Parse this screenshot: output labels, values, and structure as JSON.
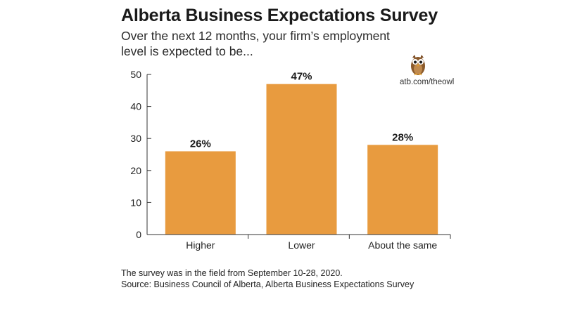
{
  "title": "Alberta Business Expectations Survey",
  "subtitle": [
    "Over the next 12 months, your firm’s employment",
    "level is expected to be..."
  ],
  "credit": "atb.com/theowl",
  "logo_icon": "owl-icon",
  "notes": [
    "The survey was in the field from September 10-28, 2020.",
    "Source: Business Council of Alberta, Alberta Business Expectations Survey"
  ],
  "colors": {
    "bar": "#E89B3F",
    "axis": "#333333",
    "text": "#222222"
  },
  "chart_data": {
    "type": "bar",
    "categories": [
      "Higher",
      "Lower",
      "About the same"
    ],
    "values": [
      26,
      47,
      28
    ],
    "data_labels": [
      "26%",
      "47%",
      "28%"
    ],
    "ylim": [
      0,
      50
    ],
    "yticks": [
      0,
      10,
      20,
      30,
      40,
      50
    ],
    "xlabel": "",
    "ylabel": "",
    "grid": false,
    "legend": "none"
  }
}
